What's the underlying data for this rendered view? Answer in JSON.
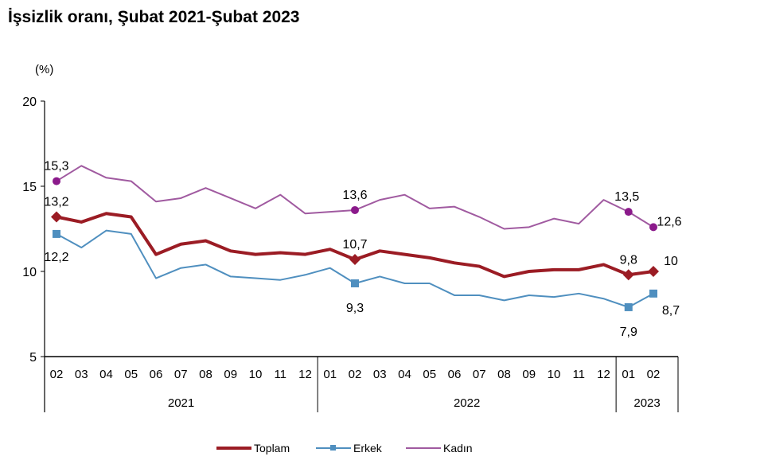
{
  "chart_data": {
    "type": "line",
    "title": "İşsizlik oranı, Şubat 2021-Şubat 2023",
    "ylabel": "(%)",
    "ylim": [
      5,
      20
    ],
    "yticks": [
      5,
      10,
      15,
      20
    ],
    "grid": false,
    "legend_position": "bottom",
    "categories": [
      "02",
      "03",
      "04",
      "05",
      "06",
      "07",
      "08",
      "09",
      "10",
      "11",
      "12",
      "01",
      "02",
      "03",
      "04",
      "05",
      "06",
      "07",
      "08",
      "09",
      "10",
      "11",
      "12",
      "01",
      "02"
    ],
    "year_groups": [
      {
        "label": "2021",
        "count": 11
      },
      {
        "label": "2022",
        "count": 12
      },
      {
        "label": "2023",
        "count": 2
      }
    ],
    "series": [
      {
        "name": "Toplam",
        "color": "#9b1c24",
        "marker": "diamond",
        "values": [
          13.2,
          12.9,
          13.4,
          13.2,
          11.0,
          11.6,
          11.8,
          11.2,
          11.0,
          11.1,
          11.0,
          11.3,
          10.7,
          11.2,
          11.0,
          10.8,
          10.5,
          10.3,
          9.7,
          10.0,
          10.1,
          10.1,
          10.4,
          9.8,
          10.0
        ],
        "labels": [
          {
            "index": 0,
            "text": "13,2"
          },
          {
            "index": 12,
            "text": "10,7"
          },
          {
            "index": 23,
            "text": "9,8"
          },
          {
            "index": 24,
            "text": "10"
          }
        ]
      },
      {
        "name": "Erkek",
        "color": "#4f8fbf",
        "marker": "square",
        "values": [
          12.2,
          11.4,
          12.4,
          12.2,
          9.6,
          10.2,
          10.4,
          9.7,
          9.6,
          9.5,
          9.8,
          10.2,
          9.3,
          9.7,
          9.3,
          9.3,
          8.6,
          8.6,
          8.3,
          8.6,
          8.5,
          8.7,
          8.4,
          7.9,
          8.7
        ],
        "labels": [
          {
            "index": 0,
            "text": "12,2"
          },
          {
            "index": 12,
            "text": "9,3"
          },
          {
            "index": 23,
            "text": "7,9"
          },
          {
            "index": 24,
            "text": "8,7"
          }
        ]
      },
      {
        "name": "Kadın",
        "color": "#a05aa0",
        "marker": "circle",
        "marker_color": "#8b1a8b",
        "values": [
          15.3,
          16.2,
          15.5,
          15.3,
          14.1,
          14.3,
          14.9,
          14.3,
          13.7,
          14.5,
          13.4,
          13.5,
          13.6,
          14.2,
          14.5,
          13.7,
          13.8,
          13.2,
          12.5,
          12.6,
          13.1,
          12.8,
          14.2,
          13.5,
          12.6
        ],
        "labels": [
          {
            "index": 0,
            "text": "15,3"
          },
          {
            "index": 12,
            "text": "13,6"
          },
          {
            "index": 23,
            "text": "13,5"
          },
          {
            "index": 24,
            "text": "12,6"
          }
        ]
      }
    ]
  }
}
